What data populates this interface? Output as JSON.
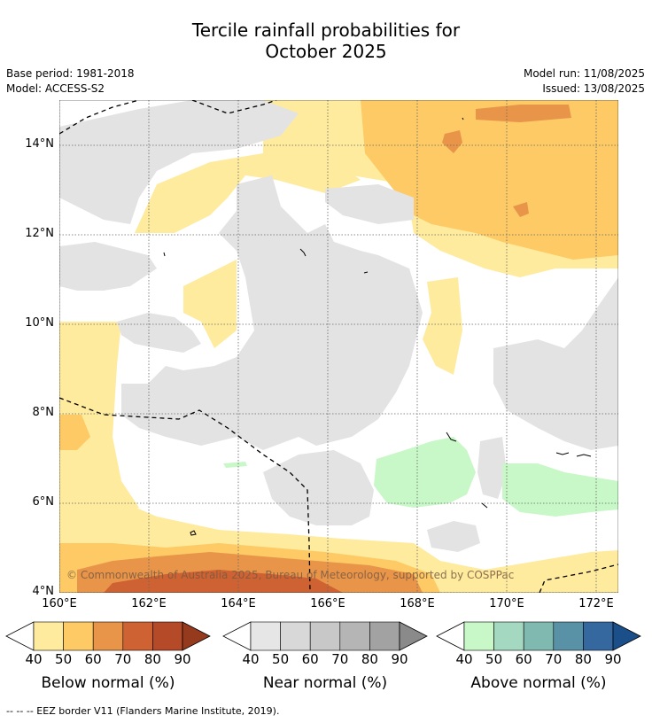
{
  "title_line1": "Tercile rainfall probabilities for",
  "title_line2": "October 2025",
  "meta": {
    "base_period": "Base period: 1981-2018",
    "model": "Model: ACCESS-S2",
    "model_run": "Model run: 11/08/2025",
    "issued": "Issued: 13/08/2025"
  },
  "map": {
    "lat_ticks": [
      "14°N",
      "12°N",
      "10°N",
      "8°N",
      "6°N",
      "4°N"
    ],
    "lon_ticks": [
      "160°E",
      "162°E",
      "164°E",
      "166°E",
      "168°E",
      "170°E",
      "172°E"
    ],
    "copyright": "© Commonwealth of Australia 2025, Bureau of Meteorology, supported by COSPPac"
  },
  "colorbars": [
    {
      "label": "Below normal (%)",
      "ticks": [
        "40",
        "50",
        "60",
        "70",
        "80",
        "90"
      ],
      "colors": [
        "#feeb9e",
        "#fdca65",
        "#e8954a",
        "#cf6232",
        "#b54a29",
        "#963a1e"
      ]
    },
    {
      "label": "Near normal (%)",
      "ticks": [
        "40",
        "50",
        "60",
        "70",
        "80",
        "90"
      ],
      "colors": [
        "#e6e6e6",
        "#d8d8d8",
        "#c8c8c8",
        "#b5b5b5",
        "#a2a2a2",
        "#8a8a8a"
      ]
    },
    {
      "label": "Above normal (%)",
      "ticks": [
        "40",
        "50",
        "60",
        "70",
        "80",
        "90"
      ],
      "colors": [
        "#c8f7c8",
        "#a4d8c0",
        "#7fb9b0",
        "#5992a6",
        "#34689f",
        "#1a4f8a"
      ]
    }
  ],
  "footer": "--  --  -- EEZ border V11 (Flanders Marine Institute, 2019)."
}
